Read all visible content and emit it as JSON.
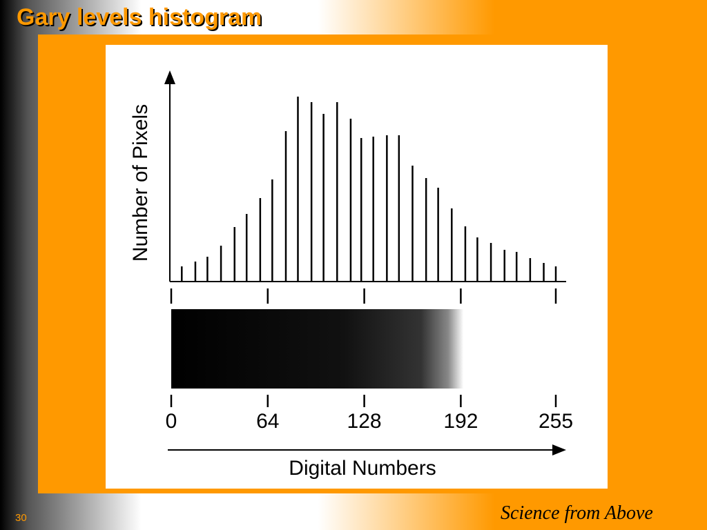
{
  "slide": {
    "title": "Gary levels histogram",
    "page_number": "30",
    "logo_text": "Science from Above"
  },
  "chart_data": {
    "type": "histogram",
    "xlabel": "Digital Numbers",
    "ylabel": "Number of Pixels",
    "x": [
      7,
      16,
      24,
      33,
      42,
      50,
      59,
      67,
      76,
      84,
      93,
      101,
      110,
      119,
      126,
      134,
      143,
      151,
      160,
      169,
      177,
      186,
      195,
      203,
      212,
      221,
      229,
      238,
      247,
      255
    ],
    "values": [
      22,
      29,
      36,
      52,
      79,
      98,
      121,
      148,
      218,
      268,
      260,
      243,
      260,
      236,
      208,
      210,
      212,
      212,
      168,
      150,
      136,
      106,
      80,
      64,
      56,
      46,
      43,
      34,
      27,
      22
    ],
    "color": "#000000",
    "xlim": [
      0,
      255
    ],
    "xticks": [
      0,
      64,
      128,
      192,
      255
    ],
    "ylim": [
      0,
      300
    ]
  }
}
